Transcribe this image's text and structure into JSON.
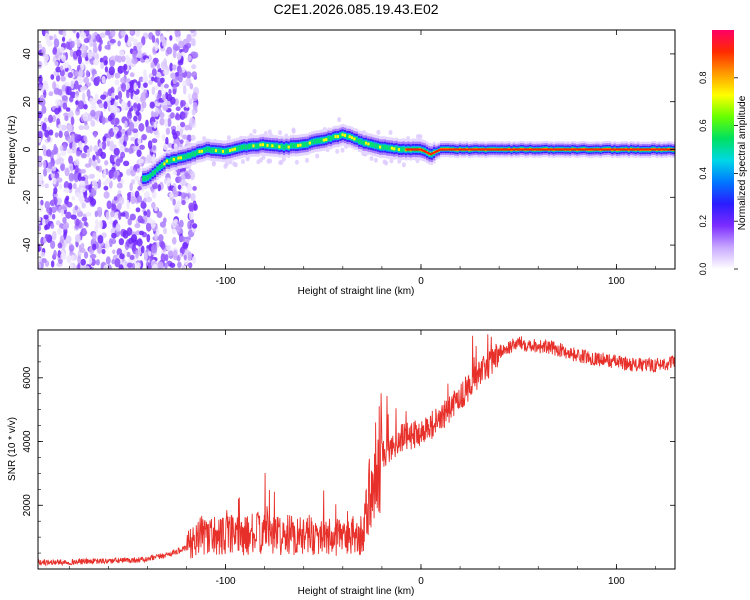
{
  "title": "C2E1.2026.085.19.43.E02",
  "chart_data": [
    {
      "type": "heatmap",
      "xlabel": "Height of straight line (km)",
      "ylabel": "Frequency (Hz)",
      "xlim": [
        -196,
        130
      ],
      "ylim": [
        -50,
        50
      ],
      "xticks": [
        -100,
        0,
        100
      ],
      "yticks": [
        -40,
        -20,
        0,
        20,
        40
      ],
      "colorbar": {
        "label": "Normalized spectral amplitude",
        "range": [
          0,
          1
        ],
        "ticks": [
          "0.0",
          "0.2",
          "0.4",
          "0.6",
          "0.8"
        ],
        "colors": [
          "#ffffff",
          "#c8a8ff",
          "#7b2cff",
          "#2a1cff",
          "#0077ff",
          "#00d8e6",
          "#00e060",
          "#66ff00",
          "#ffff00",
          "#ff9a00",
          "#ff2a00",
          "#ff0066"
        ]
      },
      "ridge": {
        "description_points_x_km": [
          -140,
          -130,
          -120,
          -110,
          -100,
          -90,
          -80,
          -70,
          -60,
          -50,
          -40,
          -35,
          -30,
          -20,
          -10,
          -2,
          0,
          5,
          10,
          130
        ],
        "frequency_hz": [
          -12,
          -5,
          -3,
          0,
          -1,
          1,
          2,
          1,
          2,
          4,
          6,
          5,
          3,
          1,
          0,
          0,
          0,
          -2,
          0,
          0
        ]
      }
    },
    {
      "type": "line",
      "xlabel": "Height of straight line (km)",
      "ylabel": "SNR (10 * v/v)",
      "xlim": [
        -196,
        130
      ],
      "ylim": [
        0,
        7500
      ],
      "xticks": [
        -100,
        0,
        100
      ],
      "yticks": [
        2000,
        4000,
        6000
      ],
      "series": [
        {
          "name": "SNR",
          "color": "#e8302a",
          "x": [
            -196,
            -180,
            -160,
            -140,
            -130,
            -120,
            -115,
            -110,
            -100,
            -90,
            -80,
            -70,
            -60,
            -50,
            -40,
            -30,
            -25,
            -22,
            -20,
            -15,
            -10,
            -5,
            0,
            10,
            20,
            30,
            40,
            50,
            60,
            70,
            80,
            90,
            100,
            110,
            120,
            130
          ],
          "y": [
            200,
            220,
            250,
            300,
            450,
            650,
            1000,
            1100,
            1050,
            1050,
            1150,
            1050,
            1100,
            1000,
            950,
            1050,
            2700,
            3300,
            3600,
            3800,
            4100,
            4200,
            4300,
            4700,
            5400,
            6100,
            6800,
            7100,
            7000,
            6900,
            6700,
            6600,
            6500,
            6400,
            6400,
            6500
          ]
        }
      ]
    }
  ]
}
